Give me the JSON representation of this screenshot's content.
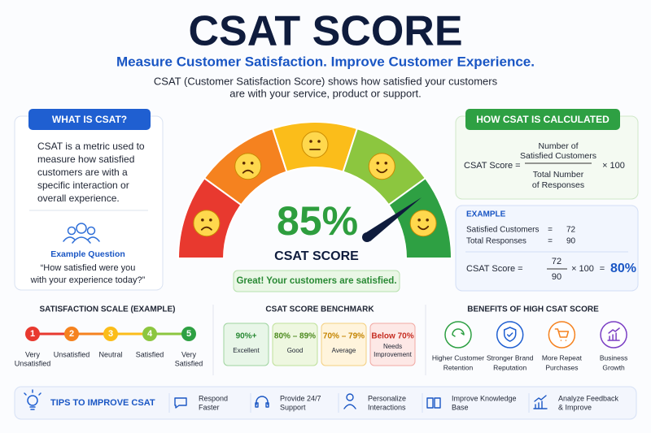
{
  "header": {
    "title": "CSAT SCORE",
    "subtitle": "Measure Customer Satisfaction. Improve Customer Experience.",
    "description": [
      "CSAT (Customer Satisfaction Score) shows how satisfied your customers",
      "are with your service, product or support."
    ]
  },
  "what_is": {
    "title": "WHAT IS CSAT?",
    "text": [
      "CSAT is a metric used to",
      "measure how satisfied",
      "customers are with a",
      "specific interaction or",
      "overall experience."
    ],
    "example_label": "Example Question",
    "example_question": [
      "“How satisfied were you",
      "with your experience today?”"
    ]
  },
  "gauge": {
    "score": "85%",
    "label": "CSAT SCORE",
    "message": "Great! Your customers are satisfied."
  },
  "calculation": {
    "title": "HOW CSAT IS CALCULATED",
    "lhs": "CSAT Score =",
    "numerator": [
      "Number of",
      "Satisfied Customers"
    ],
    "denominator": [
      "Total Number",
      "of Responses"
    ],
    "multiplier": "× 100"
  },
  "example": {
    "title": "EXAMPLE",
    "rows": [
      [
        "Satisfied Customers",
        "=",
        "72"
      ],
      [
        "Total Responses",
        "=",
        "90"
      ]
    ],
    "lhs": "CSAT Score =",
    "numerator": "72",
    "denominator": "90",
    "multiplier": "× 100",
    "equals": "=",
    "result": "80%"
  },
  "scale": {
    "title": "SATISFACTION SCALE (EXAMPLE)",
    "items": [
      {
        "number": "1",
        "label": [
          "Very",
          "Unsatisfied"
        ]
      },
      {
        "number": "2",
        "label": [
          "Unsatisfied"
        ]
      },
      {
        "number": "3",
        "label": [
          "Neutral"
        ]
      },
      {
        "number": "4",
        "label": [
          "Satisfied"
        ]
      },
      {
        "number": "5",
        "label": [
          "Very",
          "Satisfied"
        ]
      }
    ]
  },
  "benchmark": {
    "title": "CSAT SCORE BENCHMARK",
    "items": [
      {
        "range": "90%+",
        "label": [
          "Excellent"
        ]
      },
      {
        "range": "80% – 89%",
        "label": [
          "Good"
        ]
      },
      {
        "range": "70% – 79%",
        "label": [
          "Average"
        ]
      },
      {
        "range": "Below 70%",
        "label": [
          "Needs",
          "Improvement"
        ]
      }
    ]
  },
  "benefits": {
    "title": "BENEFITS OF HIGH CSAT SCORE",
    "items": [
      [
        "Higher Customer",
        "Retention"
      ],
      [
        "Stronger Brand",
        "Reputation"
      ],
      [
        "More Repeat",
        "Purchases"
      ],
      [
        "Business",
        "Growth"
      ]
    ]
  },
  "tips": {
    "title": "TIPS TO IMPROVE CSAT",
    "items": [
      [
        "Respond",
        "Faster"
      ],
      [
        "Provide 24/7",
        "Support"
      ],
      [
        "Personalize",
        "Interactions"
      ],
      [
        "Improve Knowledge",
        "Base"
      ],
      [
        "Analyze Feedback",
        "& Improve"
      ]
    ]
  }
}
